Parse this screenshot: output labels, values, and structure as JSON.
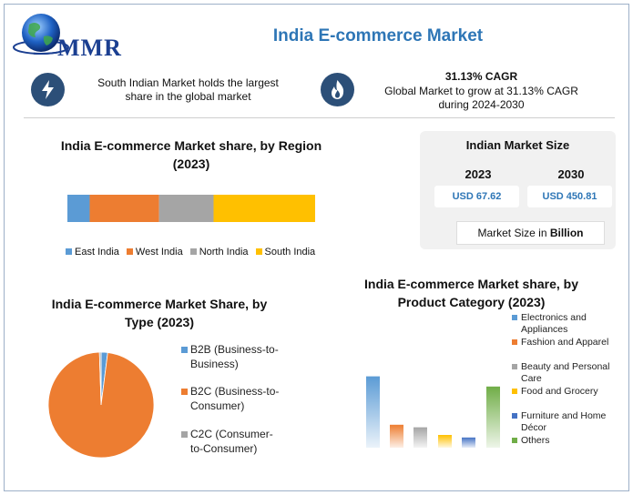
{
  "header": {
    "logo_text": "MMR",
    "title": "India E-commerce Market"
  },
  "info": {
    "left_text": "South Indian Market holds the largest share in the global market",
    "right_headline": "31.13% CAGR",
    "right_text": "Global Market to grow at 31.13% CAGR during 2024-2030",
    "left_icon": "lightning-icon",
    "right_icon": "flame-icon"
  },
  "market_size": {
    "title": "Indian Market Size",
    "year_a": "2023",
    "year_b": "2030",
    "value_a": "USD 67.62",
    "value_b": "USD 450.81",
    "unit_prefix": "Market Size in",
    "unit_bold": "Billion"
  },
  "colors": {
    "blue": "#5b9bd5",
    "orange": "#ed7d31",
    "gray": "#a5a5a5",
    "yellow": "#ffc000",
    "darkblue": "#4472c4",
    "green": "#70ad47",
    "title_blue": "#2e76b6"
  },
  "chart_data": [
    {
      "type": "bar",
      "orientation": "horizontal-stacked",
      "title": "India E-commerce Market share, by Region (2023)",
      "categories": [
        "East India",
        "West India",
        "North India",
        "South India"
      ],
      "values": [
        9,
        28,
        22,
        41
      ],
      "unit": "percent",
      "colors": [
        "#5b9bd5",
        "#ed7d31",
        "#a5a5a5",
        "#ffc000"
      ],
      "legend": "bottom"
    },
    {
      "type": "pie",
      "title": "India E-commerce Market Share, by Type (2023)",
      "categories": [
        "B2B (Business-to-Business)",
        "B2C (Business-to-Consumer)",
        "C2C (Consumer-to-Consumer)"
      ],
      "values": [
        2,
        97.5,
        0.5
      ],
      "unit": "percent",
      "colors": [
        "#5b9bd5",
        "#ed7d31",
        "#a5a5a5"
      ],
      "legend": "right"
    },
    {
      "type": "bar",
      "title": "India E-commerce Market share, by Product Category (2023)",
      "categories": [
        "Electronics and Appliances",
        "Fashion and Apparel",
        "Beauty and Personal Care",
        "Food and Grocery",
        "Furniture and Home Décor",
        "Others"
      ],
      "values": [
        28,
        9,
        8,
        5,
        4,
        24
      ],
      "unit": "percent",
      "ylim": [
        0,
        30
      ],
      "colors": [
        "#5b9bd5",
        "#ed7d31",
        "#a5a5a5",
        "#ffc000",
        "#4472c4",
        "#70ad47"
      ],
      "legend": "right"
    }
  ]
}
